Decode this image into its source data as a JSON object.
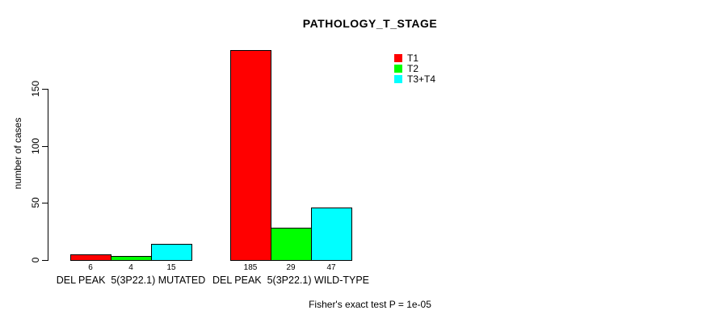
{
  "chart_data": {
    "type": "bar",
    "title": "PATHOLOGY_T_STAGE",
    "ylabel": "number of cases",
    "xlabel": "",
    "ylim": [
      0,
      150
    ],
    "yticks": [
      0,
      50,
      100,
      150
    ],
    "grid": false,
    "legend_position": "top-right",
    "categories": [
      "DEL PEAK  5(3P22.1) MUTATED",
      "DEL PEAK  5(3P22.1) WILD-TYPE"
    ],
    "series": [
      {
        "name": "T1",
        "color": "#ff0000",
        "values": [
          6,
          185
        ]
      },
      {
        "name": "T2",
        "color": "#00ff00",
        "values": [
          4,
          29
        ]
      },
      {
        "name": "T3+T4",
        "color": "#00ffff",
        "values": [
          15,
          47
        ]
      }
    ],
    "show_values_under_bars": true,
    "footer": "Fisher's exact test P = 1e-05"
  },
  "colors": {
    "background": "#ffffff",
    "text": "#000000",
    "axis": "#000000",
    "bar_border": "#000000"
  }
}
